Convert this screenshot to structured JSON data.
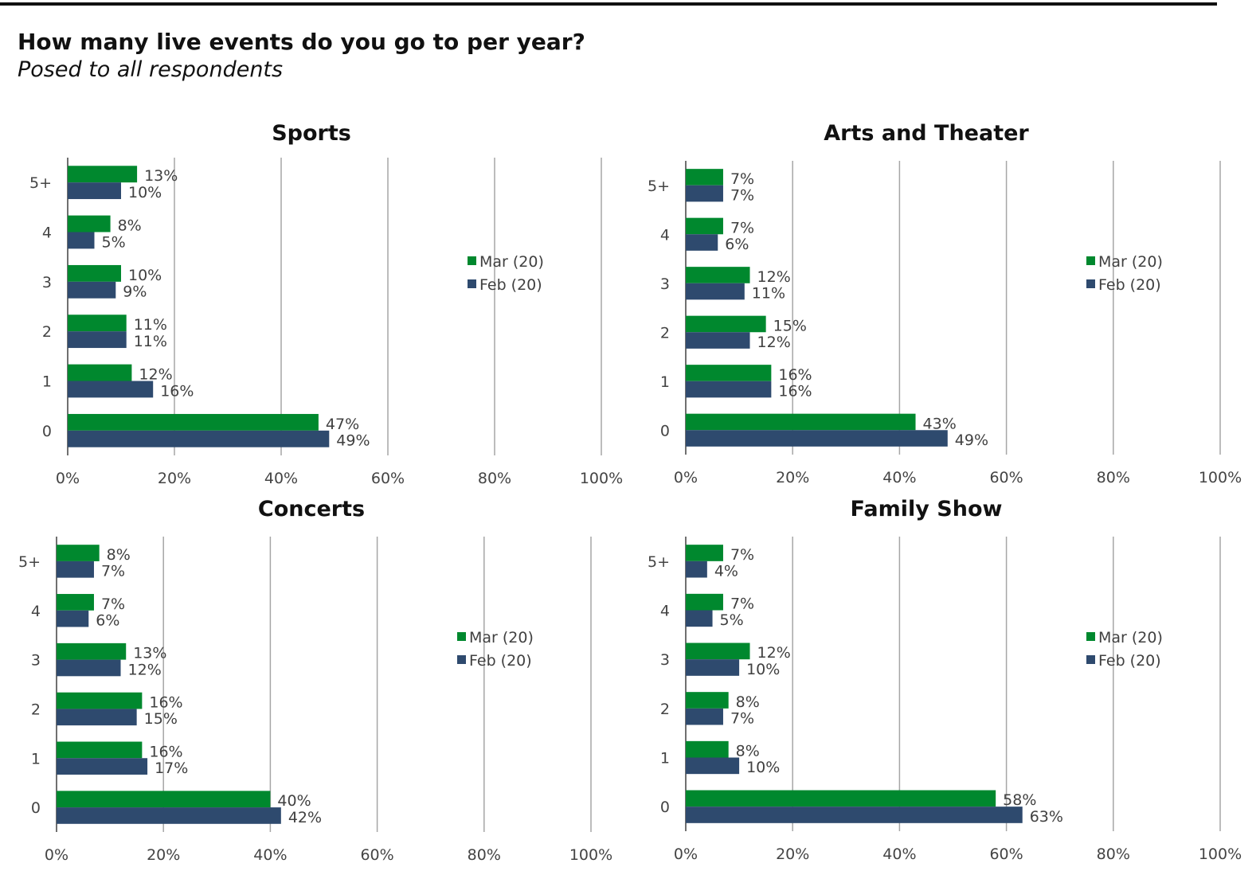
{
  "header": {
    "title": "How many live events do you go to per year?",
    "subtitle": "Posed to all respondents"
  },
  "colors": {
    "mar": "#00882E",
    "feb": "#2E4A6E",
    "grid": "#A6A6A6",
    "axis": "#404040"
  },
  "chart_data": [
    {
      "type": "bar",
      "orientation": "horizontal",
      "title": "Sports",
      "categories": [
        "5+",
        "4",
        "3",
        "2",
        "1",
        "0"
      ],
      "series": [
        {
          "name": "Mar (20)",
          "values": [
            13,
            8,
            10,
            11,
            12,
            47
          ],
          "labels": [
            "13%",
            "8%",
            "10%",
            "11%",
            "12%",
            "47%"
          ]
        },
        {
          "name": "Feb (20)",
          "values": [
            10,
            5,
            9,
            11,
            16,
            49
          ],
          "labels": [
            "10%",
            "5%",
            "9%",
            "11%",
            "16%",
            "49%"
          ]
        }
      ],
      "xlim": [
        0,
        100
      ],
      "xticks": [
        "0%",
        "20%",
        "40%",
        "60%",
        "80%",
        "100%"
      ],
      "grid": true,
      "legend": "right"
    },
    {
      "type": "bar",
      "orientation": "horizontal",
      "title": "Arts and Theater",
      "categories": [
        "5+",
        "4",
        "3",
        "2",
        "1",
        "0"
      ],
      "series": [
        {
          "name": "Mar (20)",
          "values": [
            7,
            7,
            12,
            15,
            16,
            43
          ],
          "labels": [
            "7%",
            "7%",
            "12%",
            "15%",
            "16%",
            "43%"
          ]
        },
        {
          "name": "Feb (20)",
          "values": [
            7,
            6,
            11,
            12,
            16,
            49
          ],
          "labels": [
            "7%",
            "6%",
            "11%",
            "12%",
            "16%",
            "49%"
          ]
        }
      ],
      "xlim": [
        0,
        100
      ],
      "xticks": [
        "0%",
        "20%",
        "40%",
        "60%",
        "80%",
        "100%"
      ],
      "grid": true,
      "legend": "right"
    },
    {
      "type": "bar",
      "orientation": "horizontal",
      "title": "Concerts",
      "categories": [
        "5+",
        "4",
        "3",
        "2",
        "1",
        "0"
      ],
      "series": [
        {
          "name": "Mar (20)",
          "values": [
            8,
            7,
            13,
            16,
            16,
            40
          ],
          "labels": [
            "8%",
            "7%",
            "13%",
            "16%",
            "16%",
            "40%"
          ]
        },
        {
          "name": "Feb (20)",
          "values": [
            7,
            6,
            12,
            15,
            17,
            42
          ],
          "labels": [
            "7%",
            "6%",
            "12%",
            "15%",
            "17%",
            "42%"
          ]
        }
      ],
      "xlim": [
        0,
        100
      ],
      "xticks": [
        "0%",
        "20%",
        "40%",
        "60%",
        "80%",
        "100%"
      ],
      "grid": true,
      "legend": "right"
    },
    {
      "type": "bar",
      "orientation": "horizontal",
      "title": "Family Show",
      "categories": [
        "5+",
        "4",
        "3",
        "2",
        "1",
        "0"
      ],
      "series": [
        {
          "name": "Mar (20)",
          "values": [
            7,
            7,
            12,
            8,
            8,
            58
          ],
          "labels": [
            "7%",
            "7%",
            "12%",
            "8%",
            "8%",
            "58%"
          ]
        },
        {
          "name": "Feb (20)",
          "values": [
            4,
            5,
            10,
            7,
            10,
            63
          ],
          "labels": [
            "4%",
            "5%",
            "10%",
            "7%",
            "10%",
            "63%"
          ]
        }
      ],
      "xlim": [
        0,
        100
      ],
      "xticks": [
        "0%",
        "20%",
        "40%",
        "60%",
        "80%",
        "100%"
      ],
      "grid": true,
      "legend": "right"
    }
  ]
}
